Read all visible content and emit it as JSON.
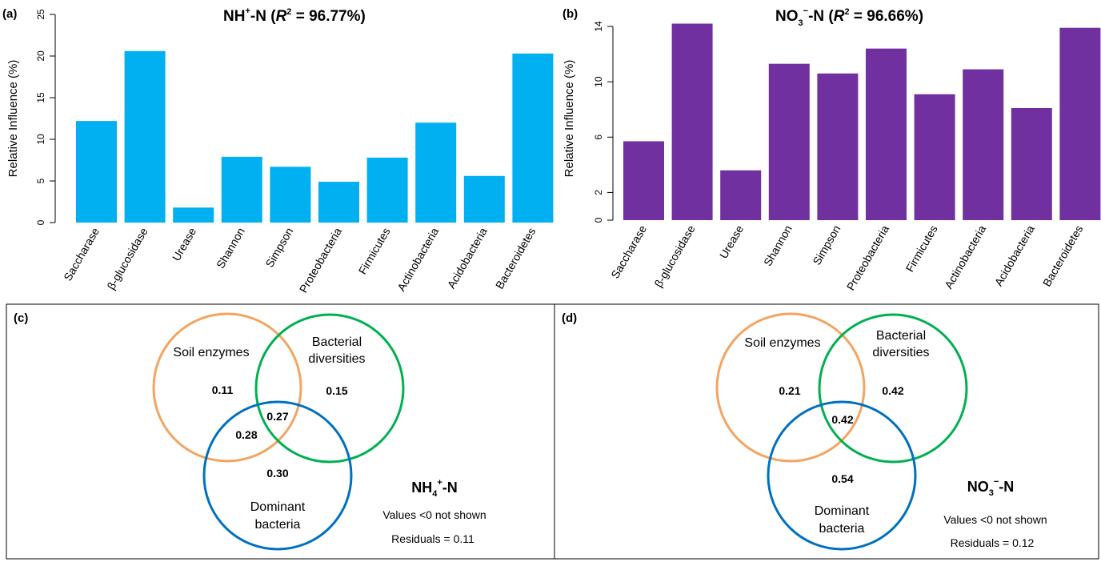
{
  "chart_data": [
    {
      "type": "bar",
      "panel": "(a)",
      "title": "NH4+-N (R2 = 96.77%)",
      "title_parts": {
        "species": "NH",
        "sub": "4",
        "sup": "+",
        "suffix": "-N",
        "r": "R",
        "rsup": "2",
        "rval": " = 96.77%)"
      },
      "ylabel": "Relative Influence (%)",
      "xlabel": "",
      "categories": [
        "Saccharase",
        "β-glucosidase",
        "Urease",
        "Shannon",
        "Simpson",
        "Proteobacteria",
        "Firmicutes",
        "Actinobacteria",
        "Acidobacteria",
        "Bacteroidetes"
      ],
      "values": [
        12.2,
        20.6,
        1.8,
        7.9,
        6.7,
        4.9,
        7.8,
        12.0,
        5.6,
        20.3
      ],
      "ylim": [
        0,
        25
      ],
      "yticks": [
        "0",
        "5",
        "10",
        "15",
        "20",
        "25"
      ],
      "color": "#00b0f0",
      "grid": false
    },
    {
      "type": "bar",
      "panel": "(b)",
      "title": "NO3−-N (R2 = 96.66%)",
      "title_parts": {
        "species": "NO",
        "sub": "3",
        "sup": "−",
        "suffix": "-N",
        "r": "R",
        "rsup": "2",
        "rval": " = 96.66%)"
      },
      "ylabel": "Relative Influence (%)",
      "xlabel": "",
      "categories": [
        "Saccharase",
        "β-glucosidase",
        "Urease",
        "Shannon",
        "Simpson",
        "Proteobacteria",
        "Firmicutes",
        "Actinobacteria",
        "Acidobacteria",
        "Bacteroidetes"
      ],
      "values": [
        5.7,
        14.2,
        3.6,
        11.3,
        10.6,
        12.4,
        9.1,
        10.9,
        8.1,
        13.9
      ],
      "ylim": [
        0,
        14
      ],
      "yticks": [
        "0",
        "2",
        "6",
        "10",
        "14"
      ],
      "ytick_values": [
        0,
        2,
        6,
        10,
        14
      ],
      "color": "#7030a0",
      "grid": false
    }
  ],
  "venn": [
    {
      "panel": "(c)",
      "title_parts": {
        "species": "NH",
        "sub": "4",
        "sup": "+",
        "suffix": "-N"
      },
      "labels": {
        "soil": "Soil enzymes",
        "bact_1": "Bacterial",
        "bact_2": "diversities",
        "dom_1": "Dominant",
        "dom_2": "bacteria"
      },
      "values": {
        "soil": "0.11",
        "bact": "0.15",
        "center": "0.27",
        "soil_dom": "0.28",
        "dom": "0.30"
      },
      "note": "Values <0 not shown",
      "residuals": "Residuals = 0.11",
      "colors": {
        "soil": "#f4a460",
        "bact": "#00b050",
        "dom": "#0070c0"
      }
    },
    {
      "panel": "(d)",
      "title_parts": {
        "species": "NO",
        "sub": "3",
        "sup": "−",
        "suffix": "-N"
      },
      "labels": {
        "soil": "Soil enzymes",
        "bact_1": "Bacterial",
        "bact_2": "diversities",
        "dom_1": "Dominant",
        "dom_2": "bacteria"
      },
      "values": {
        "soil": "0.21",
        "bact": "0.42",
        "center": "0.42",
        "dom": "0.54"
      },
      "note": "Values <0 not shown",
      "residuals": "Residuals = 0.12",
      "colors": {
        "soil": "#f4a460",
        "bact": "#00b050",
        "dom": "#0070c0"
      }
    }
  ]
}
